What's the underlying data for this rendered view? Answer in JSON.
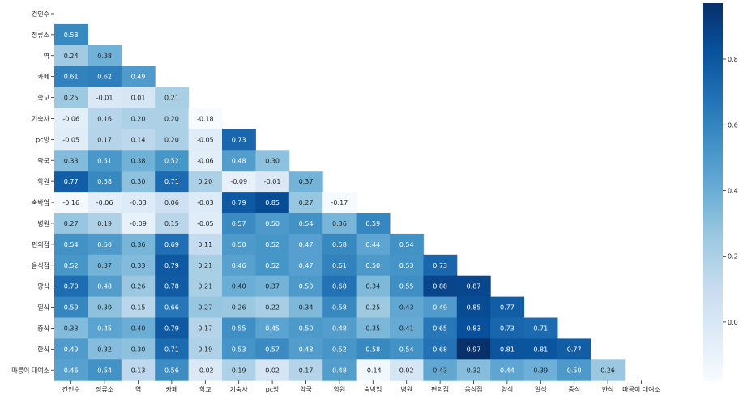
{
  "chart_data": {
    "type": "heatmap",
    "title": "",
    "xlabel": "",
    "ylabel": "",
    "mask": "upper-triangle",
    "labels": [
      "건인수",
      "정류소",
      "역",
      "카페",
      "학교",
      "기숙사",
      "pc방",
      "약국",
      "학원",
      "숙박업",
      "병원",
      "편의점",
      "음식점",
      "양식",
      "일식",
      "중식",
      "한식",
      "따릉이 대여소"
    ],
    "values": [
      [],
      [
        0.58
      ],
      [
        0.24,
        0.38
      ],
      [
        0.61,
        0.62,
        0.49
      ],
      [
        0.25,
        -0.01,
        0.01,
        0.21
      ],
      [
        -0.06,
        0.16,
        0.2,
        0.2,
        -0.18
      ],
      [
        -0.05,
        0.17,
        0.14,
        0.2,
        -0.05,
        0.73
      ],
      [
        0.33,
        0.51,
        0.38,
        0.52,
        -0.06,
        0.48,
        0.3
      ],
      [
        0.77,
        0.58,
        0.3,
        0.71,
        0.2,
        -0.09,
        -0.01,
        0.37
      ],
      [
        -0.16,
        -0.06,
        -0.03,
        0.06,
        -0.03,
        0.79,
        0.85,
        0.27,
        -0.17
      ],
      [
        0.27,
        0.19,
        -0.09,
        0.15,
        -0.05,
        0.57,
        0.5,
        0.54,
        0.36,
        0.59
      ],
      [
        0.54,
        0.5,
        0.36,
        0.69,
        0.11,
        0.5,
        0.52,
        0.47,
        0.58,
        0.44,
        0.54
      ],
      [
        0.52,
        0.37,
        0.33,
        0.79,
        0.21,
        0.46,
        0.52,
        0.47,
        0.61,
        0.5,
        0.53,
        0.73
      ],
      [
        0.7,
        0.48,
        0.26,
        0.78,
        0.21,
        0.4,
        0.37,
        0.5,
        0.68,
        0.34,
        0.55,
        0.88,
        0.87
      ],
      [
        0.59,
        0.3,
        0.15,
        0.66,
        0.27,
        0.26,
        0.22,
        0.34,
        0.58,
        0.25,
        0.43,
        0.49,
        0.85,
        0.77
      ],
      [
        0.33,
        0.45,
        0.4,
        0.79,
        0.17,
        0.55,
        0.45,
        0.5,
        0.48,
        0.35,
        0.41,
        0.65,
        0.83,
        0.73,
        0.71
      ],
      [
        0.49,
        0.32,
        0.3,
        0.71,
        0.19,
        0.53,
        0.57,
        0.48,
        0.52,
        0.58,
        0.54,
        0.68,
        0.97,
        0.81,
        0.81,
        0.77
      ],
      [
        0.46,
        0.54,
        0.13,
        0.56,
        -0.02,
        0.19,
        0.02,
        0.17,
        0.48,
        -0.14,
        0.02,
        0.43,
        0.32,
        0.44,
        0.39,
        0.5,
        0.26
      ]
    ],
    "colorscale": "Blues",
    "vmin": -0.18,
    "vmax": 0.97,
    "colorbar_ticks": [
      0.0,
      0.2,
      0.4,
      0.6,
      0.8
    ],
    "colorbar_tick_labels": [
      "0.0",
      "0.2",
      "0.4",
      "0.6",
      "0.8"
    ]
  }
}
